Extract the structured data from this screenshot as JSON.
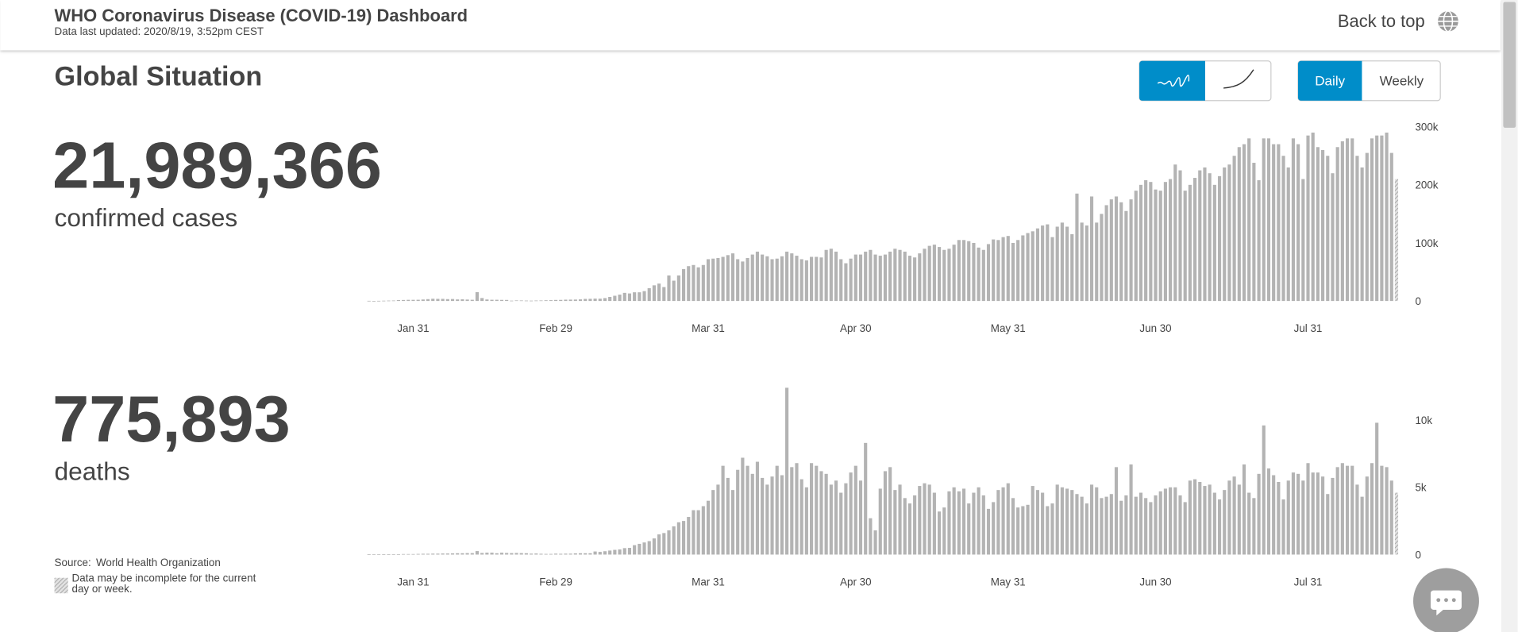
{
  "header": {
    "title": "WHO Coronavirus Disease (COVID-19) Dashboard",
    "updated": "Data last updated: 2020/8/19, 3:52pm CEST",
    "back_to_top": "Back to top"
  },
  "section_title": "Global Situation",
  "frequency": [
    "Daily",
    "Weekly"
  ],
  "stats": [
    {
      "value": "21,989,366",
      "label": "confirmed cases"
    },
    {
      "value": "775,893",
      "label": "deaths"
    }
  ],
  "source": {
    "label": "Source:",
    "name": "World Health Organization",
    "note": "Data may be incomplete for the current day or week."
  },
  "chart_data": [
    {
      "type": "bar",
      "color": "#b3b3b3",
      "categories": [
        null,
        null,
        null,
        null,
        null,
        null,
        null,
        null,
        null,
        "Jan 31",
        null,
        null,
        null,
        null,
        null,
        null,
        null,
        null,
        null,
        null,
        null,
        null,
        null,
        null,
        null,
        null,
        null,
        null,
        null,
        null,
        null,
        null,
        null,
        null,
        null,
        null,
        null,
        null,
        "Feb 29",
        null,
        null,
        null,
        null,
        null,
        null,
        null,
        null,
        null,
        null,
        null,
        null,
        null,
        null,
        null,
        null,
        null,
        null,
        null,
        null,
        null,
        null,
        null,
        null,
        null,
        null,
        null,
        null,
        null,
        null,
        "Mar 31",
        null,
        null,
        null,
        null,
        null,
        null,
        null,
        null,
        null,
        null,
        null,
        null,
        null,
        null,
        null,
        null,
        null,
        null,
        null,
        null,
        null,
        null,
        null,
        null,
        null,
        null,
        null,
        null,
        null,
        "Apr 30",
        null,
        null,
        null,
        null,
        null,
        null,
        null,
        null,
        null,
        null,
        null,
        null,
        null,
        null,
        null,
        null,
        null,
        null,
        null,
        null,
        null,
        null,
        null,
        null,
        null,
        null,
        null,
        null,
        null,
        null,
        "May 31",
        null,
        null,
        null,
        null,
        null,
        null,
        null,
        null,
        null,
        null,
        null,
        null,
        null,
        null,
        null,
        null,
        null,
        null,
        null,
        null,
        null,
        null,
        null,
        null,
        null,
        null,
        null,
        null,
        null,
        "Jun 30",
        null,
        null,
        null,
        null,
        null,
        null,
        null,
        null,
        null,
        null,
        null,
        null,
        null,
        null,
        null,
        null,
        null,
        null,
        null,
        null,
        null,
        null,
        null,
        null,
        null,
        null,
        null,
        null,
        null,
        null,
        "Jul 31",
        null,
        null,
        null,
        null,
        null,
        null,
        null,
        null,
        null,
        null,
        null,
        null,
        null,
        null,
        null,
        null,
        null,
        null
      ],
      "values": [
        300,
        100,
        300,
        500,
        700,
        800,
        1500,
        1700,
        2000,
        2000,
        2100,
        2600,
        3200,
        3900,
        3700,
        3700,
        3200,
        3400,
        2700,
        3000,
        2500,
        2100,
        15200,
        5100,
        2600,
        2100,
        2100,
        1900,
        1800,
        600,
        1000,
        900,
        700,
        600,
        800,
        900,
        1200,
        1400,
        1800,
        1900,
        2300,
        2400,
        2500,
        2800,
        3600,
        3800,
        4100,
        4000,
        5000,
        7000,
        9000,
        11000,
        14000,
        13000,
        15000,
        15000,
        17000,
        22000,
        27000,
        30000,
        24000,
        44000,
        35000,
        44000,
        55000,
        60000,
        62000,
        58000,
        62000,
        72000,
        73000,
        74000,
        76000,
        79000,
        82000,
        72000,
        68000,
        74000,
        80000,
        85000,
        80000,
        77000,
        72000,
        73000,
        77000,
        85000,
        82000,
        78000,
        72000,
        70000,
        76000,
        76000,
        75000,
        88000,
        90000,
        85000,
        72000,
        65000,
        73000,
        80000,
        80000,
        85000,
        88000,
        80000,
        78000,
        80000,
        85000,
        90000,
        88000,
        85000,
        78000,
        75000,
        82000,
        90000,
        95000,
        97000,
        93000,
        88000,
        90000,
        97000,
        105000,
        105000,
        103000,
        100000,
        92000,
        88000,
        98000,
        106000,
        105000,
        110000,
        112000,
        100000,
        105000,
        113000,
        117000,
        120000,
        125000,
        130000,
        132000,
        110000,
        128000,
        135000,
        128000,
        115000,
        185000,
        135000,
        130000,
        180000,
        135000,
        150000,
        165000,
        175000,
        180000,
        170000,
        155000,
        175000,
        190000,
        200000,
        208000,
        205000,
        192000,
        190000,
        205000,
        210000,
        235000,
        225000,
        190000,
        200000,
        212000,
        225000,
        230000,
        220000,
        200000,
        215000,
        230000,
        235000,
        250000,
        265000,
        270000,
        280000,
        238000,
        208000,
        280000,
        280000,
        270000,
        270000,
        250000,
        230000,
        280000,
        270000,
        210000,
        285000,
        290000,
        265000,
        260000,
        250000,
        220000,
        265000,
        275000,
        280000,
        280000,
        250000,
        230000,
        255000,
        280000,
        285000,
        285000,
        290000,
        255000,
        210000
      ],
      "ylim": [
        0,
        300000
      ],
      "yticks": [
        0,
        {
          "value": 100000,
          "label": "100k"
        },
        {
          "value": 200000,
          "label": "200k"
        },
        {
          "value": 300000,
          "label": "300k"
        }
      ]
    },
    {
      "type": "bar",
      "color": "#b3b3b3",
      "categories": [
        null,
        null,
        null,
        null,
        null,
        null,
        null,
        null,
        null,
        "Jan 31",
        null,
        null,
        null,
        null,
        null,
        null,
        null,
        null,
        null,
        null,
        null,
        null,
        null,
        null,
        null,
        null,
        null,
        null,
        null,
        null,
        null,
        null,
        null,
        null,
        null,
        null,
        null,
        null,
        "Feb 29",
        null,
        null,
        null,
        null,
        null,
        null,
        null,
        null,
        null,
        null,
        null,
        null,
        null,
        null,
        null,
        null,
        null,
        null,
        null,
        null,
        null,
        null,
        null,
        null,
        null,
        null,
        null,
        null,
        null,
        null,
        "Mar 31",
        null,
        null,
        null,
        null,
        null,
        null,
        null,
        null,
        null,
        null,
        null,
        null,
        null,
        null,
        null,
        null,
        null,
        null,
        null,
        null,
        null,
        null,
        null,
        null,
        null,
        null,
        null,
        null,
        null,
        "Apr 30",
        null,
        null,
        null,
        null,
        null,
        null,
        null,
        null,
        null,
        null,
        null,
        null,
        null,
        null,
        null,
        null,
        null,
        null,
        null,
        null,
        null,
        null,
        null,
        null,
        null,
        null,
        null,
        null,
        null,
        null,
        "May 31",
        null,
        null,
        null,
        null,
        null,
        null,
        null,
        null,
        null,
        null,
        null,
        null,
        null,
        null,
        null,
        null,
        null,
        null,
        null,
        null,
        null,
        null,
        null,
        null,
        null,
        null,
        null,
        null,
        null,
        "Jun 30",
        null,
        null,
        null,
        null,
        null,
        null,
        null,
        null,
        null,
        null,
        null,
        null,
        null,
        null,
        null,
        null,
        null,
        null,
        null,
        null,
        null,
        null,
        null,
        null,
        null,
        null,
        null,
        null,
        null,
        null,
        "Jul 31",
        null,
        null,
        null,
        null,
        null,
        null,
        null,
        null,
        null,
        null,
        null,
        null,
        null,
        null,
        null,
        null,
        null,
        null
      ],
      "values": [
        20,
        10,
        10,
        20,
        20,
        30,
        30,
        40,
        40,
        40,
        50,
        60,
        60,
        70,
        70,
        80,
        80,
        90,
        100,
        100,
        110,
        110,
        260,
        120,
        140,
        140,
        100,
        140,
        120,
        110,
        120,
        110,
        100,
        70,
        80,
        60,
        50,
        50,
        70,
        60,
        70,
        70,
        90,
        100,
        100,
        100,
        230,
        200,
        250,
        300,
        350,
        380,
        480,
        500,
        700,
        800,
        900,
        1000,
        1200,
        1500,
        1600,
        1800,
        2100,
        2400,
        2500,
        2800,
        3300,
        3300,
        3600,
        4000,
        4800,
        5200,
        6600,
        5700,
        4800,
        6300,
        7200,
        6600,
        6000,
        6900,
        5700,
        5200,
        5800,
        6600,
        5900,
        12400,
        6500,
        6800,
        5600,
        5000,
        6800,
        6600,
        6200,
        6000,
        5200,
        5500,
        4600,
        5300,
        6100,
        6600,
        5500,
        8300,
        2700,
        1800,
        4900,
        6200,
        6500,
        4800,
        5200,
        4200,
        3800,
        4400,
        5100,
        5300,
        5200,
        4600,
        3200,
        3500,
        4700,
        5000,
        4700,
        4900,
        3800,
        4600,
        5000,
        4400,
        3400,
        3900,
        4800,
        5000,
        5300,
        4200,
        3500,
        3600,
        3700,
        5100,
        4800,
        4600,
        3600,
        3800,
        5200,
        5000,
        4900,
        4800,
        4500,
        4300,
        3800,
        5200,
        5000,
        4200,
        4300,
        4500,
        6500,
        4000,
        4400,
        6700,
        4300,
        4600,
        4200,
        3900,
        4400,
        4700,
        4900,
        5000,
        5000,
        4400,
        3900,
        5500,
        5600,
        5400,
        5100,
        5200,
        4600,
        4100,
        4800,
        5500,
        5800,
        5200,
        6700,
        4600,
        4200,
        6000,
        9600,
        6400,
        5900,
        5400,
        4100,
        5500,
        6100,
        6000,
        5500,
        6800,
        6100,
        6100,
        5800,
        4500,
        5700,
        6500,
        6800,
        6600,
        6600,
        5200,
        4300,
        5800,
        6800,
        9800,
        6600,
        6500,
        5500,
        4600
      ],
      "ylim": [
        0,
        12500
      ],
      "yticks": [
        0,
        {
          "value": 5000,
          "label": "5k"
        },
        {
          "value": 10000,
          "label": "10k"
        }
      ]
    }
  ]
}
